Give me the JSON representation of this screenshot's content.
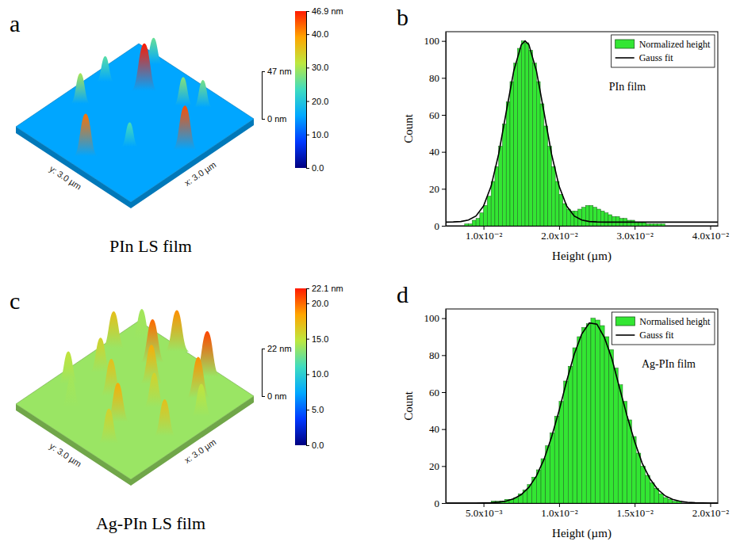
{
  "chart_data": [
    {
      "type": "surface",
      "panel_label": "a",
      "caption": "PIn LS film",
      "x_label": "x: 3.0 µm",
      "y_label": "y: 3.0 µm",
      "xlim": [
        0,
        3
      ],
      "ylim": [
        0,
        3
      ],
      "zlim": [
        0,
        47
      ],
      "zticks": [
        {
          "value": 0,
          "label": "0 nm"
        },
        {
          "value": 47,
          "label": "47 nm"
        }
      ],
      "colorbar": {
        "range": [
          0,
          46.9
        ],
        "ticks": [
          {
            "value": 0,
            "label": "0.0"
          },
          {
            "value": 10,
            "label": "10.0"
          },
          {
            "value": 20,
            "label": "20.0"
          },
          {
            "value": 30,
            "label": "30.0"
          },
          {
            "value": 40,
            "label": "40.0"
          },
          {
            "value": 46.9,
            "label": "46.9 nm"
          }
        ]
      },
      "peaks": [
        {
          "x": 2.8,
          "y": 2.4,
          "height": 26
        },
        {
          "x": 1.9,
          "y": 2.7,
          "height": 25
        },
        {
          "x": 2.2,
          "y": 2.0,
          "height": 46.9
        },
        {
          "x": 1.2,
          "y": 2.6,
          "height": 30
        },
        {
          "x": 2.4,
          "y": 1.2,
          "height": 28
        },
        {
          "x": 2.6,
          "y": 0.9,
          "height": 27
        },
        {
          "x": 0.6,
          "y": 1.8,
          "height": 22
        },
        {
          "x": 1.0,
          "y": 1.1,
          "height": 24
        },
        {
          "x": 1.6,
          "y": 0.3,
          "height": 44
        },
        {
          "x": 0.3,
          "y": 1.5,
          "height": 42
        }
      ]
    },
    {
      "type": "histogram",
      "panel_label": "b",
      "annotation": "PIn film",
      "x_label": "Height (µm)",
      "y_label": "Count",
      "xlim": [
        0.005,
        0.041
      ],
      "ylim": [
        0,
        105
      ],
      "xticks": [
        {
          "value": 0.01,
          "label": "1.0x10⁻²"
        },
        {
          "value": 0.02,
          "label": "2.0x10⁻²"
        },
        {
          "value": 0.03,
          "label": "3.0x10⁻²"
        },
        {
          "value": 0.04,
          "label": "4.0x10⁻²"
        }
      ],
      "yticks": [
        0,
        20,
        40,
        60,
        80,
        100
      ],
      "legend": "top-right",
      "series": [
        {
          "name": "Normalized height",
          "type": "bar",
          "color": "#33e633",
          "bins": [
            0.0075,
            0.008,
            0.0085,
            0.009,
            0.0095,
            0.01,
            0.0105,
            0.011,
            0.0115,
            0.012,
            0.0125,
            0.013,
            0.0135,
            0.014,
            0.0145,
            0.015,
            0.0155,
            0.016,
            0.0165,
            0.017,
            0.0175,
            0.018,
            0.0185,
            0.019,
            0.0195,
            0.02,
            0.0205,
            0.021,
            0.0215,
            0.022,
            0.0225,
            0.023,
            0.0235,
            0.024,
            0.0245,
            0.025,
            0.0255,
            0.026,
            0.0265,
            0.027,
            0.0275,
            0.028,
            0.0285,
            0.029,
            0.0295,
            0.03,
            0.0305,
            0.031,
            0.0315,
            0.032,
            0.0325,
            0.033,
            0.0335,
            0.034,
            0.0345,
            0.035,
            0.0355
          ],
          "values": [
            1,
            1,
            3,
            4,
            7,
            11,
            16,
            24,
            32,
            43,
            55,
            67,
            78,
            88,
            96,
            100,
            99,
            95,
            88,
            78,
            66,
            54,
            43,
            32,
            24,
            17,
            12,
            9,
            8,
            8,
            9,
            10,
            11,
            11,
            10,
            9,
            8,
            7,
            6,
            5,
            5,
            4,
            4,
            3,
            3,
            2,
            2,
            2,
            1,
            1,
            1,
            1,
            1,
            0,
            0,
            0
          ]
        },
        {
          "name": "Gauss fit",
          "type": "line",
          "color": "#000000",
          "x": [
            0.005,
            0.006,
            0.007,
            0.008,
            0.009,
            0.01,
            0.011,
            0.012,
            0.013,
            0.014,
            0.015,
            0.0155,
            0.016,
            0.017,
            0.018,
            0.019,
            0.02,
            0.021,
            0.022,
            0.023,
            0.024,
            0.025,
            0.026,
            0.027,
            0.028,
            0.029,
            0.03,
            0.031,
            0.032,
            0.033,
            0.034,
            0.035,
            0.036,
            0.037,
            0.038,
            0.039,
            0.04,
            0.041,
            0.042
          ],
          "values": [
            2,
            2.1,
            2.3,
            3.1,
            5.3,
            10.7,
            21.4,
            38.8,
            61.5,
            83.8,
            98,
            100,
            98,
            83.8,
            61.5,
            38.8,
            21.4,
            10.7,
            5.3,
            3.1,
            2.3,
            2.1,
            2,
            2,
            2,
            2,
            2,
            2,
            2,
            2,
            2,
            2,
            2,
            2,
            2,
            2,
            2,
            2,
            2
          ]
        }
      ]
    },
    {
      "type": "surface",
      "panel_label": "c",
      "caption": "Ag-PIn LS film",
      "x_label": "x: 3.0 µm",
      "y_label": "y: 3.0 µm",
      "xlim": [
        0,
        3
      ],
      "ylim": [
        0,
        3
      ],
      "zlim": [
        0,
        22
      ],
      "zticks": [
        {
          "value": 0,
          "label": "0 nm"
        },
        {
          "value": 22,
          "label": "22 nm"
        }
      ],
      "colorbar": {
        "range": [
          0,
          22.1
        ],
        "ticks": [
          {
            "value": 0,
            "label": "0.0"
          },
          {
            "value": 5,
            "label": "5.0"
          },
          {
            "value": 10,
            "label": "10.0"
          },
          {
            "value": 15,
            "label": "15.0"
          },
          {
            "value": 20,
            "label": "20.0"
          },
          {
            "value": 22.1,
            "label": "22.1 nm"
          }
        ]
      },
      "peaks": [
        {
          "x": 2.7,
          "y": 2.6,
          "height": 14
        },
        {
          "x": 2.2,
          "y": 2.8,
          "height": 17
        },
        {
          "x": 2.9,
          "y": 1.9,
          "height": 19
        },
        {
          "x": 2.4,
          "y": 2.0,
          "height": 20
        },
        {
          "x": 1.6,
          "y": 2.5,
          "height": 16
        },
        {
          "x": 2.8,
          "y": 1.0,
          "height": 21
        },
        {
          "x": 1.0,
          "y": 2.7,
          "height": 15
        },
        {
          "x": 2.0,
          "y": 1.6,
          "height": 18
        },
        {
          "x": 1.3,
          "y": 1.9,
          "height": 17
        },
        {
          "x": 2.3,
          "y": 0.7,
          "height": 19
        },
        {
          "x": 0.6,
          "y": 2.2,
          "height": 14
        },
        {
          "x": 1.6,
          "y": 1.1,
          "height": 16
        },
        {
          "x": 2.0,
          "y": 0.3,
          "height": 15
        },
        {
          "x": 0.9,
          "y": 1.3,
          "height": 18
        },
        {
          "x": 1.2,
          "y": 0.4,
          "height": 17
        },
        {
          "x": 0.4,
          "y": 1.0,
          "height": 16
        }
      ]
    },
    {
      "type": "histogram",
      "panel_label": "d",
      "annotation": "Ag-PIn film",
      "x_label": "Height (µm)",
      "y_label": "Count",
      "xlim": [
        0.0025,
        0.0205
      ],
      "ylim": [
        0,
        105
      ],
      "xticks": [
        {
          "value": 0.005,
          "label": "5.0x10⁻³"
        },
        {
          "value": 0.01,
          "label": "1.0x10⁻²"
        },
        {
          "value": 0.015,
          "label": "1.5x10⁻²"
        },
        {
          "value": 0.02,
          "label": "2.0x10⁻²"
        }
      ],
      "yticks": [
        0,
        20,
        40,
        60,
        80,
        100
      ],
      "legend": "top-right",
      "series": [
        {
          "name": "Normalised height",
          "type": "bar",
          "color": "#33e633",
          "bins": [
            0.004,
            0.0043,
            0.0046,
            0.0049,
            0.0052,
            0.0055,
            0.0058,
            0.0061,
            0.0064,
            0.0067,
            0.007,
            0.0073,
            0.0076,
            0.0079,
            0.0082,
            0.0085,
            0.0088,
            0.0091,
            0.0094,
            0.0097,
            0.01,
            0.0103,
            0.0106,
            0.0109,
            0.0112,
            0.0115,
            0.0118,
            0.0121,
            0.0124,
            0.0127,
            0.013,
            0.0133,
            0.0136,
            0.0139,
            0.0142,
            0.0145,
            0.0148,
            0.0151,
            0.0154,
            0.0157,
            0.016,
            0.0163,
            0.0166,
            0.0169,
            0.0172,
            0.0175,
            0.0178,
            0.0181,
            0.0184,
            0.0187,
            0.019
          ],
          "values": [
            0,
            0,
            0,
            0,
            0,
            1,
            1,
            1,
            2,
            2,
            3,
            5,
            7,
            10,
            14,
            18,
            24,
            31,
            38,
            47,
            55,
            66,
            74,
            84,
            90,
            95,
            97,
            100,
            99,
            96,
            90,
            83,
            73,
            64,
            55,
            45,
            36,
            27,
            20,
            15,
            11,
            8,
            5,
            3,
            2,
            1,
            1,
            0,
            0,
            0
          ]
        },
        {
          "name": "Gauss fit",
          "type": "line",
          "color": "#000000",
          "x": [
            0.0025,
            0.003,
            0.0035,
            0.004,
            0.0045,
            0.005,
            0.0055,
            0.006,
            0.0065,
            0.007,
            0.0075,
            0.008,
            0.0085,
            0.009,
            0.0095,
            0.01,
            0.0105,
            0.011,
            0.0115,
            0.012,
            0.0125,
            0.013,
            0.0135,
            0.014,
            0.0145,
            0.015,
            0.0155,
            0.016,
            0.0165,
            0.017,
            0.0175,
            0.018,
            0.0185,
            0.019,
            0.0195,
            0.02,
            0.0205
          ],
          "values": [
            0,
            0,
            0,
            0,
            0,
            0.07,
            0.19,
            0.48,
            1.09,
            2.3,
            4.6,
            8.5,
            14.6,
            23.6,
            35.7,
            50,
            66,
            80.5,
            91.5,
            97.4,
            96.8,
            89.5,
            77.9,
            62.3,
            47,
            33.2,
            21.5,
            13.3,
            7.6,
            4,
            2,
            0.94,
            0.4,
            0.16,
            0.05,
            0,
            0
          ]
        }
      ]
    }
  ]
}
